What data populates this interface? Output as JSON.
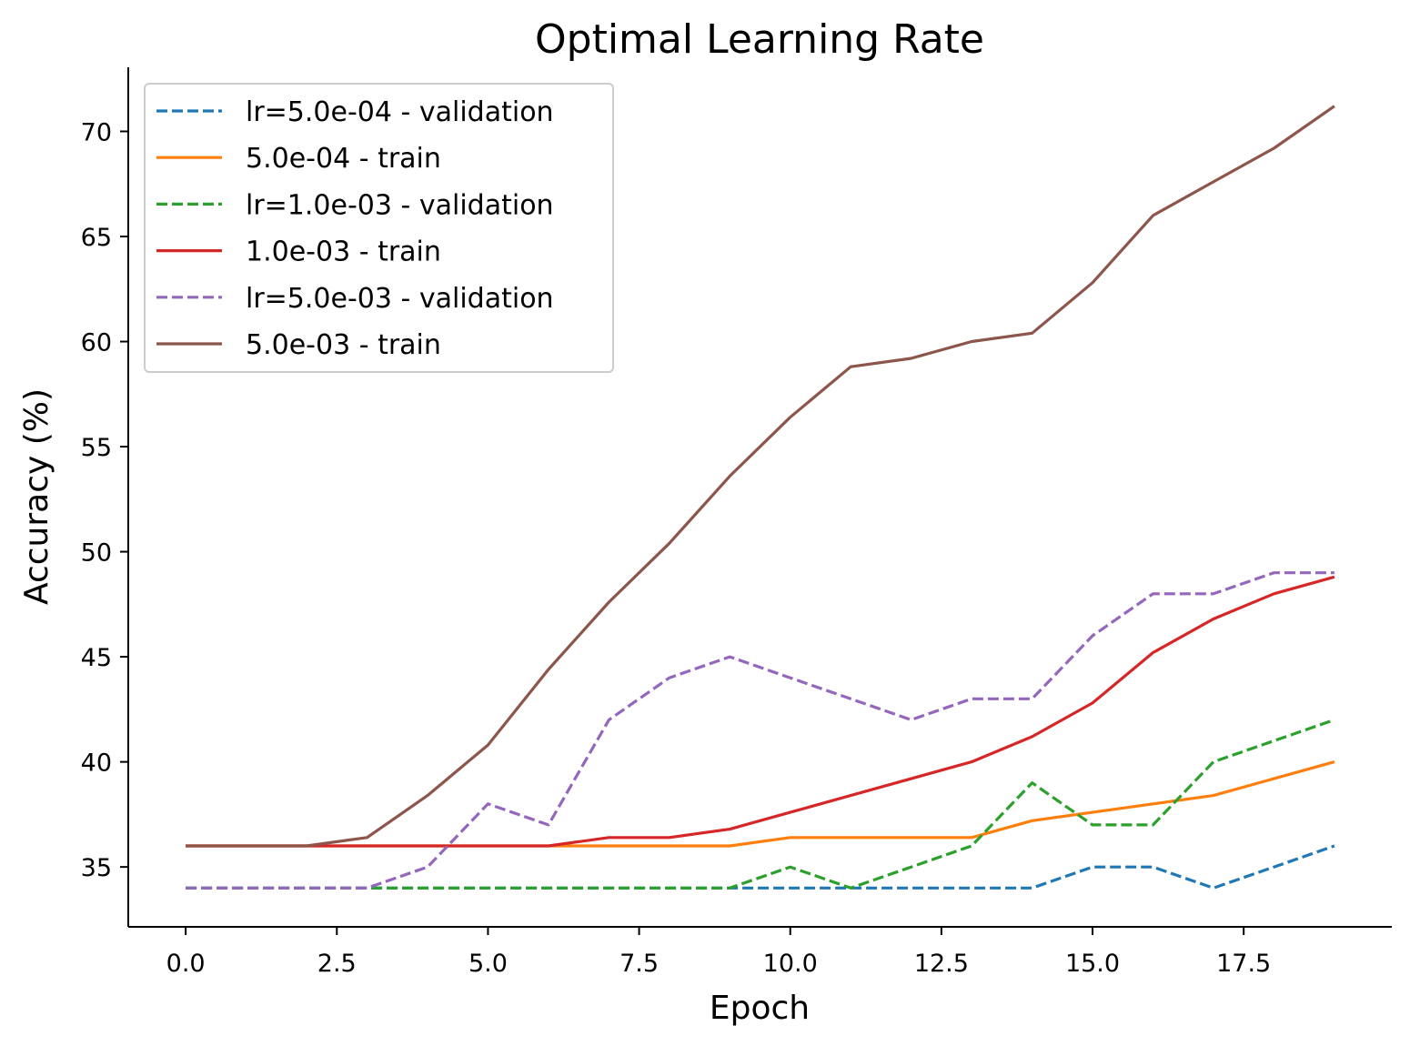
{
  "chart_data": {
    "type": "line",
    "title": "Optimal Learning Rate",
    "xlabel": "Epoch",
    "ylabel": "Accuracy (%)",
    "xlim": [
      -0.95,
      19.95
    ],
    "ylim": [
      32.15,
      73.05
    ],
    "xticks": [
      0.0,
      2.5,
      5.0,
      7.5,
      10.0,
      12.5,
      15.0,
      17.5
    ],
    "xtick_labels": [
      "0.0",
      "2.5",
      "5.0",
      "7.5",
      "10.0",
      "12.5",
      "15.0",
      "17.5"
    ],
    "yticks": [
      35,
      40,
      45,
      50,
      55,
      60,
      65,
      70
    ],
    "ytick_labels": [
      "35",
      "40",
      "45",
      "50",
      "55",
      "60",
      "65",
      "70"
    ],
    "grid": false,
    "legend_position": "top-left",
    "x": [
      0,
      1,
      2,
      3,
      4,
      5,
      6,
      7,
      8,
      9,
      10,
      11,
      12,
      13,
      14,
      15,
      16,
      17,
      18,
      19
    ],
    "series": [
      {
        "name": "lr=5.0e-04 - validation",
        "color": "#1f77b4",
        "style": "dashed",
        "values": [
          34,
          34,
          34,
          34,
          34,
          34,
          34,
          34,
          34,
          34,
          34,
          34,
          34,
          34,
          34,
          35,
          35,
          34,
          35,
          36
        ]
      },
      {
        "name": "5.0e-04 - train",
        "color": "#ff7f0e",
        "style": "solid",
        "values": [
          36,
          36,
          36,
          36,
          36,
          36,
          36,
          36,
          36,
          36,
          36.4,
          36.4,
          36.4,
          36.4,
          37.2,
          37.6,
          38.0,
          38.4,
          39.2,
          40.0
        ]
      },
      {
        "name": "lr=1.0e-03 - validation",
        "color": "#2ca02c",
        "style": "dashed",
        "values": [
          34,
          34,
          34,
          34,
          34,
          34,
          34,
          34,
          34,
          34,
          35,
          34,
          35,
          36,
          39,
          37,
          37,
          40,
          41,
          42
        ]
      },
      {
        "name": "1.0e-03 - train",
        "color": "#d62728",
        "style": "solid",
        "values": [
          36,
          36,
          36,
          36,
          36,
          36,
          36,
          36.4,
          36.4,
          36.8,
          37.6,
          38.4,
          39.2,
          40.0,
          41.2,
          42.8,
          45.2,
          46.8,
          48.0,
          48.8
        ]
      },
      {
        "name": "lr=5.0e-03 - validation",
        "color": "#9467bd",
        "style": "dashed",
        "values": [
          34,
          34,
          34,
          34,
          35,
          38,
          37,
          42,
          44,
          45,
          44,
          43,
          42,
          43,
          43,
          46,
          48,
          48,
          49,
          49
        ]
      },
      {
        "name": "5.0e-03 - train",
        "color": "#8c564b",
        "style": "solid",
        "values": [
          36,
          36,
          36,
          36.4,
          38.4,
          40.8,
          44.4,
          47.6,
          50.4,
          53.6,
          56.4,
          58.8,
          59.2,
          60.0,
          60.4,
          62.8,
          66.0,
          67.6,
          69.2,
          71.2
        ]
      }
    ]
  }
}
